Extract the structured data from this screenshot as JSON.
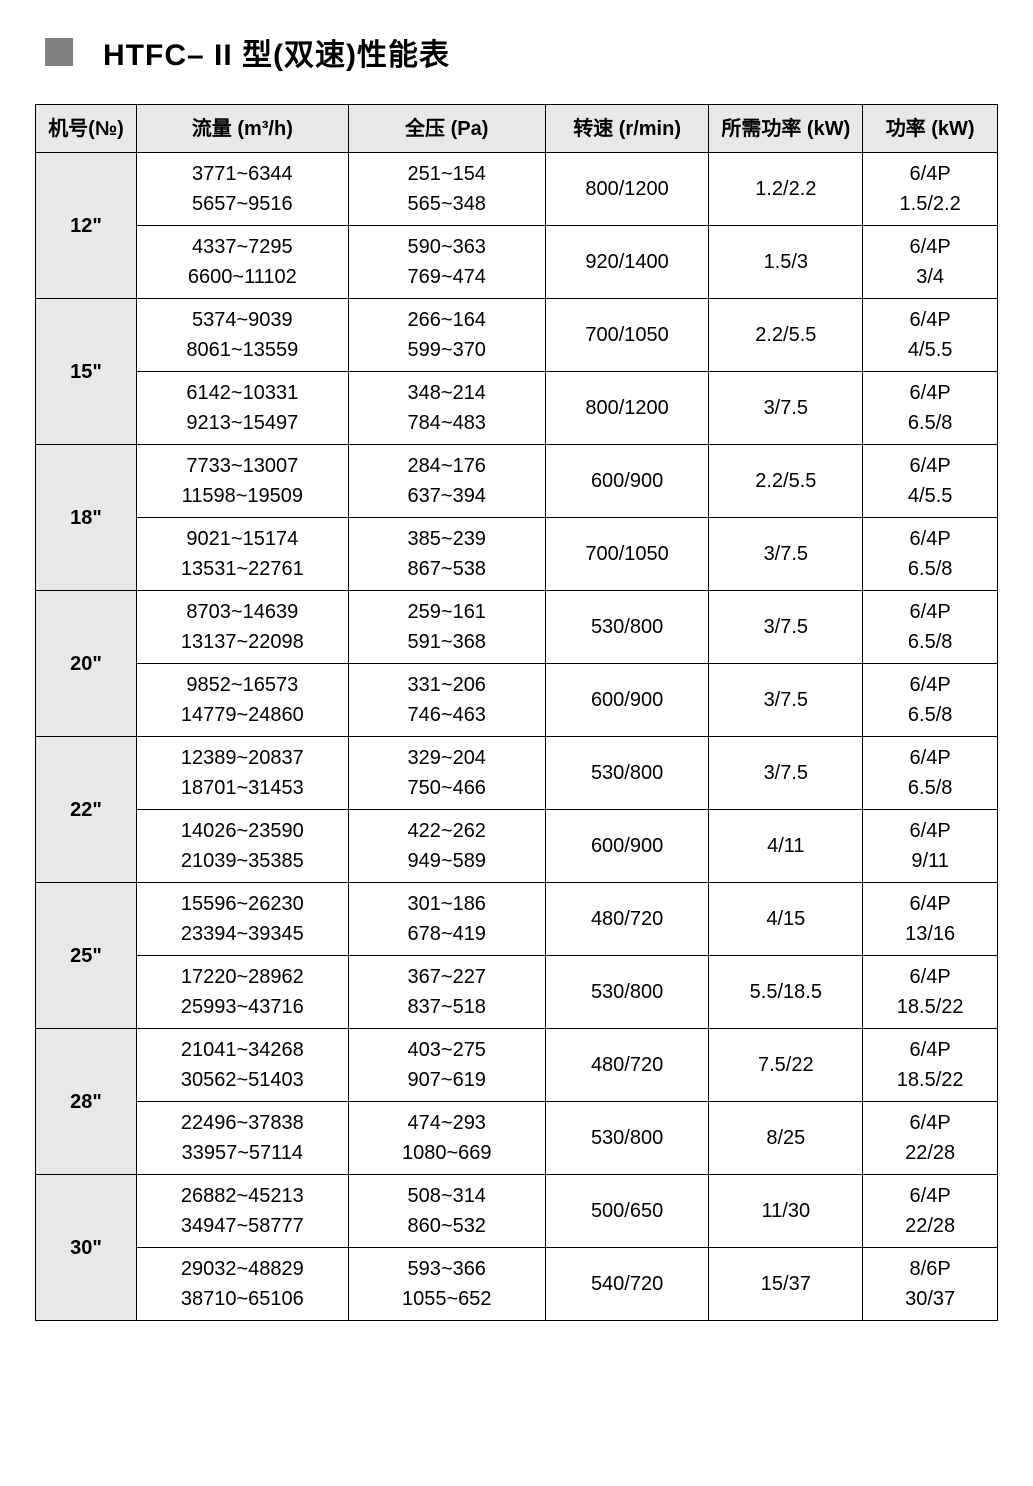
{
  "title": "HTFC– II 型(双速)性能表",
  "columns": [
    "机号(№)",
    "流量 (m³/h)",
    "全压 (Pa)",
    "转速 (r/min)",
    "所需功率 (kW)",
    "功率 (kW)"
  ],
  "colors": {
    "header_bg": "#e8e8e8",
    "border": "#000000",
    "text": "#000000",
    "title_accent": "#808080",
    "page_bg": "#ffffff"
  },
  "fonts": {
    "title_pt": 30,
    "header_pt": 20,
    "cell_pt": 20
  },
  "models": [
    {
      "model": "12\"",
      "variants": [
        {
          "flow": "3771~6344\n5657~9516",
          "pressure": "251~154\n565~348",
          "speed": "800/1200",
          "req_power": "1.2/2.2",
          "power": "6/4P\n1.5/2.2"
        },
        {
          "flow": "4337~7295\n6600~11102",
          "pressure": "590~363\n769~474",
          "speed": "920/1400",
          "req_power": "1.5/3",
          "power": "6/4P\n3/4"
        }
      ]
    },
    {
      "model": "15\"",
      "variants": [
        {
          "flow": "5374~9039\n8061~13559",
          "pressure": "266~164\n599~370",
          "speed": "700/1050",
          "req_power": "2.2/5.5",
          "power": "6/4P\n4/5.5"
        },
        {
          "flow": "6142~10331\n9213~15497",
          "pressure": "348~214\n784~483",
          "speed": "800/1200",
          "req_power": "3/7.5",
          "power": "6/4P\n6.5/8"
        }
      ]
    },
    {
      "model": "18\"",
      "variants": [
        {
          "flow": "7733~13007\n11598~19509",
          "pressure": "284~176\n637~394",
          "speed": "600/900",
          "req_power": "2.2/5.5",
          "power": "6/4P\n4/5.5"
        },
        {
          "flow": "9021~15174\n13531~22761",
          "pressure": "385~239\n867~538",
          "speed": "700/1050",
          "req_power": "3/7.5",
          "power": "6/4P\n6.5/8"
        }
      ]
    },
    {
      "model": "20\"",
      "variants": [
        {
          "flow": "8703~14639\n13137~22098",
          "pressure": "259~161\n591~368",
          "speed": "530/800",
          "req_power": "3/7.5",
          "power": "6/4P\n6.5/8"
        },
        {
          "flow": "9852~16573\n14779~24860",
          "pressure": "331~206\n746~463",
          "speed": "600/900",
          "req_power": "3/7.5",
          "power": "6/4P\n6.5/8"
        }
      ]
    },
    {
      "model": "22\"",
      "variants": [
        {
          "flow": "12389~20837\n18701~31453",
          "pressure": "329~204\n750~466",
          "speed": "530/800",
          "req_power": "3/7.5",
          "power": "6/4P\n6.5/8"
        },
        {
          "flow": "14026~23590\n21039~35385",
          "pressure": "422~262\n949~589",
          "speed": "600/900",
          "req_power": "4/11",
          "power": "6/4P\n9/11"
        }
      ]
    },
    {
      "model": "25\"",
      "variants": [
        {
          "flow": "15596~26230\n23394~39345",
          "pressure": "301~186\n678~419",
          "speed": "480/720",
          "req_power": "4/15",
          "power": "6/4P\n13/16"
        },
        {
          "flow": "17220~28962\n25993~43716",
          "pressure": "367~227\n837~518",
          "speed": "530/800",
          "req_power": "5.5/18.5",
          "power": "6/4P\n18.5/22"
        }
      ]
    },
    {
      "model": "28\"",
      "variants": [
        {
          "flow": "21041~34268\n30562~51403",
          "pressure": "403~275\n907~619",
          "speed": "480/720",
          "req_power": "7.5/22",
          "power": "6/4P\n18.5/22"
        },
        {
          "flow": "22496~37838\n33957~57114",
          "pressure": "474~293\n1080~669",
          "speed": "530/800",
          "req_power": "8/25",
          "power": "6/4P\n22/28"
        }
      ]
    },
    {
      "model": "30\"",
      "variants": [
        {
          "flow": "26882~45213\n34947~58777",
          "pressure": "508~314\n860~532",
          "speed": "500/650",
          "req_power": "11/30",
          "power": "6/4P\n22/28"
        },
        {
          "flow": "29032~48829\n38710~65106",
          "pressure": "593~366\n1055~652",
          "speed": "540/720",
          "req_power": "15/37",
          "power": "8/6P\n30/37"
        }
      ]
    }
  ]
}
